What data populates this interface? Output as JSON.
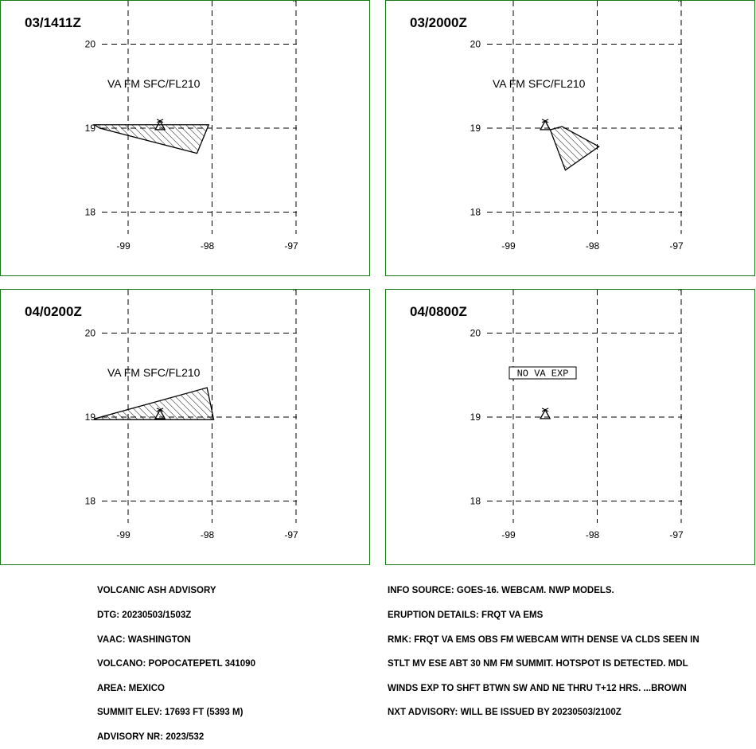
{
  "panels": [
    {
      "time": "03/1411Z",
      "va_label": "VA FM SFC/FL210",
      "ash_polygon": [
        [
          -99.4,
          19.04
        ],
        [
          -98.04,
          19.04
        ],
        [
          -98.18,
          18.7
        ],
        [
          -99.34,
          19.0
        ]
      ],
      "no_va": false
    },
    {
      "time": "03/2000Z",
      "va_label": "VA FM SFC/FL210",
      "ash_polygon": [
        [
          -98.42,
          19.02
        ],
        [
          -97.98,
          18.78
        ],
        [
          -98.38,
          18.5
        ],
        [
          -98.56,
          18.98
        ]
      ],
      "no_va": false
    },
    {
      "time": "04/0200Z",
      "va_label": "VA FM SFC/FL210",
      "ash_polygon": [
        [
          -99.4,
          18.98
        ],
        [
          -98.06,
          19.35
        ],
        [
          -97.98,
          18.97
        ],
        [
          -99.4,
          18.97
        ]
      ],
      "no_va": false
    },
    {
      "time": "04/0800Z",
      "va_label": "NO VA EXP",
      "ash_polygon": [],
      "no_va": true
    }
  ],
  "map": {
    "lat_labels": [
      "20",
      "19",
      "18"
    ],
    "lon_labels": [
      "-99",
      "-98",
      "-97"
    ],
    "volcano_position": [
      -98.62,
      19.02
    ]
  },
  "advisory_left": [
    "VOLCANIC ASH ADVISORY",
    "DTG: 20230503/1503Z",
    "VAAC: WASHINGTON",
    "VOLCANO: POPOCATEPETL 341090",
    "AREA: MEXICO",
    "SUMMIT ELEV: 17693 FT (5393 M)",
    "ADVISORY NR: 2023/532"
  ],
  "advisory_right": [
    "INFO SOURCE: GOES-16. WEBCAM. NWP MODELS.",
    "ERUPTION DETAILS: FRQT VA EMS",
    "RMK: FRQT VA EMS OBS FM WEBCAM WITH DENSE VA CLDS SEEN IN",
    "STLT MV ESE ABT 30 NM FM SUMMIT. HOTSPOT IS DETECTED. MDL",
    "WINDS EXP TO SHFT BTWN SW AND NE THRU T+12 HRS. ...BROWN",
    "NXT ADVISORY: WILL BE ISSUED BY 20230503/2100Z"
  ]
}
